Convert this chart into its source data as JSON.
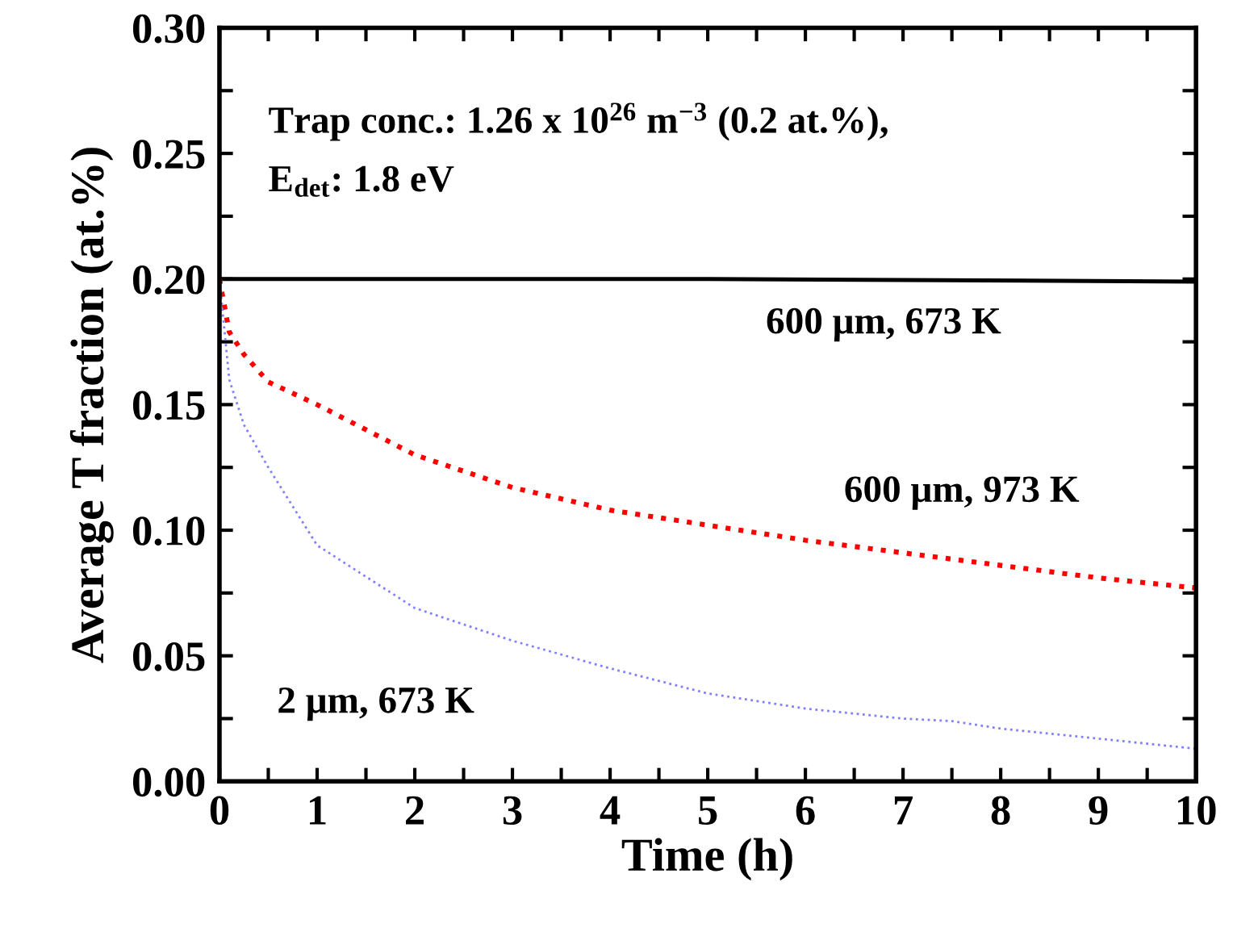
{
  "chart_data": {
    "type": "line",
    "xlabel": "Time (h)",
    "ylabel": "Average T fraction (at.%)",
    "annotations": [
      "Trap conc.: 1.26 x 10$^{26}$ m$^{−3}$ (0.2 at.%),",
      "E$_{det}$: 1.8 eV"
    ],
    "xlim": [
      0,
      10
    ],
    "ylim": [
      0,
      0.3
    ],
    "xticks": [
      0,
      {
        "value": 0.5,
        "label": null
      },
      1,
      {
        "value": 1.5,
        "label": null
      },
      2,
      {
        "value": 2.5,
        "label": null
      },
      3,
      {
        "value": 3.5,
        "label": null
      },
      4,
      {
        "value": 4.5,
        "label": null
      },
      5,
      {
        "value": 5.5,
        "label": null
      },
      6,
      {
        "value": 6.5,
        "label": null
      },
      7,
      {
        "value": 7.5,
        "label": null
      },
      8,
      {
        "value": 8.5,
        "label": null
      },
      9,
      {
        "value": 9.5,
        "label": null
      },
      10
    ],
    "yticks": [
      {
        "value": 0,
        "label": "0.00"
      },
      {
        "value": 0.025,
        "label": null
      },
      {
        "value": 0.05,
        "label": "0.05"
      },
      {
        "value": 0.075,
        "label": null
      },
      {
        "value": 0.1,
        "label": "0.10"
      },
      {
        "value": 0.125,
        "label": null
      },
      {
        "value": 0.15,
        "label": "0.15"
      },
      {
        "value": 0.175,
        "label": null
      },
      {
        "value": 0.2,
        "label": "0.20"
      },
      {
        "value": 0.225,
        "label": null
      },
      {
        "value": 0.25,
        "label": "0.25"
      },
      {
        "value": 0.275,
        "label": null
      },
      {
        "value": 0.3,
        "label": "0.30"
      }
    ],
    "grid": false,
    "legend": false,
    "series": [
      {
        "name": "600 μm, 673 K",
        "color": "#000000",
        "line_style": "solid",
        "x": [
          0,
          5,
          10
        ],
        "values": [
          0.2,
          0.2,
          0.199
        ]
      },
      {
        "name": "600 μm, 973 K",
        "color": "#ff0000",
        "line_style": "dotted",
        "x": [
          0,
          0.1,
          0.25,
          0.5,
          1,
          2,
          3,
          4,
          5,
          6,
          7,
          8,
          9,
          10
        ],
        "values": [
          0.2,
          0.179,
          0.17,
          0.159,
          0.15,
          0.13,
          0.117,
          0.108,
          0.102,
          0.096,
          0.091,
          0.086,
          0.081,
          0.077
        ]
      },
      {
        "name": "2 μm, 673 K",
        "color": "#8080ff",
        "line_style": "dotted",
        "x": [
          0,
          0.1,
          0.25,
          0.5,
          1,
          2,
          3,
          4,
          5,
          6,
          7,
          7.5,
          8,
          9,
          10
        ],
        "values": [
          0.2,
          0.16,
          0.142,
          0.125,
          0.094,
          0.069,
          0.056,
          0.045,
          0.035,
          0.029,
          0.025,
          0.024,
          0.021,
          0.017,
          0.013
        ]
      }
    ]
  }
}
